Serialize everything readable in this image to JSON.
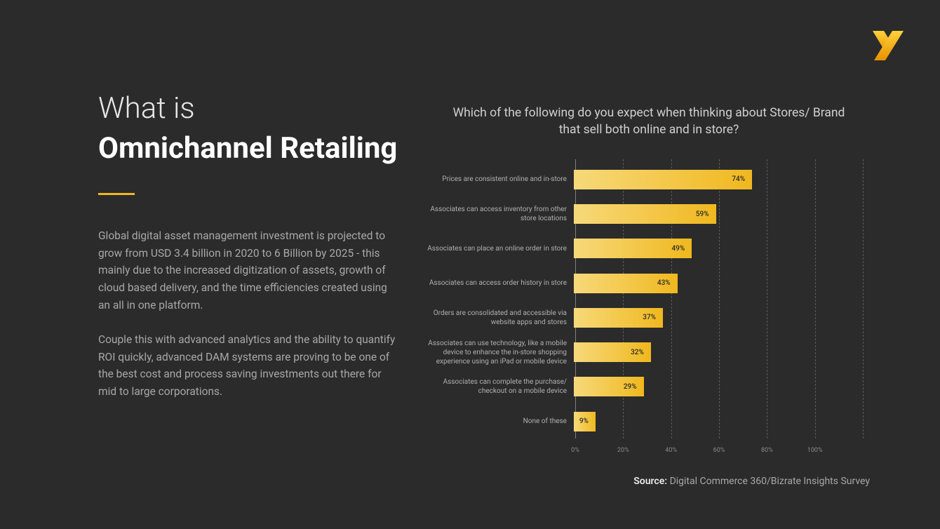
{
  "background_color": "#2b2b2b",
  "accent_color": "#f0b81f",
  "logo": {
    "color_top": "#ffc93c",
    "color_bottom": "#e89200"
  },
  "left": {
    "title_line1": "What is",
    "title_line2": "Omnichannel Retailing",
    "paragraph1": "Global digital asset management investment is projected to grow from USD 3.4 billion in 2020 to 6 Billion by 2025 - this mainly due to the increased digitization of assets, growth of cloud based delivery, and the time efficiencies created using an all in one platform.",
    "paragraph2": "Couple this with advanced analytics and the ability to quantify ROI quickly, advanced DAM systems are proving to be one of the best cost and process saving investments out there for mid to large corporations."
  },
  "chart": {
    "type": "bar-horizontal",
    "title": "Which of the following do you expect when thinking about Stores/ Brand that sell both online and in store?",
    "xmax": 120,
    "xticks": [
      0,
      20,
      40,
      60,
      80,
      100,
      120
    ],
    "xlabels": [
      "0%",
      "20%",
      "40%",
      "60%",
      "80%",
      "100%",
      ""
    ],
    "bar_gradient_from": "#f7d97a",
    "bar_gradient_to": "#f0b81f",
    "grid_color": "#5a5a5a",
    "label_color": "#b0b0b0",
    "value_label_color": "#2b2b2b",
    "bars": [
      {
        "label": "Prices are consistent online and in-store",
        "value": 74
      },
      {
        "label": "Associates can access inventory from other store locations",
        "value": 59
      },
      {
        "label": "Associates can place an online order in store",
        "value": 49
      },
      {
        "label": "Associates can access order history in store",
        "value": 43
      },
      {
        "label": "Orders are consolidated and accessible via website apps and stores",
        "value": 37
      },
      {
        "label": "Associates can use technology, like a mobile device to enhance the in-store shopping experience using an iPad or mobile device",
        "value": 32
      },
      {
        "label": "Associates can complete the purchase/ checkout on a mobile device",
        "value": 29
      },
      {
        "label": "None of these",
        "value": 9
      }
    ]
  },
  "source": {
    "prefix": "Source:",
    "text": "Digital Commerce 360/Bizrate Insights Survey"
  }
}
